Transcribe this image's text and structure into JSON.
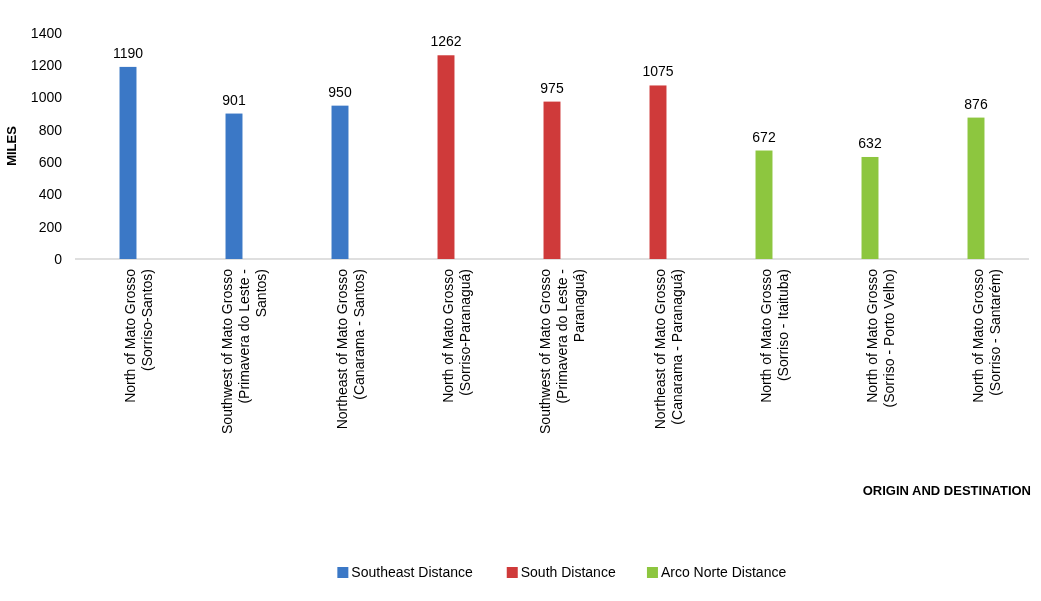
{
  "chart_data": {
    "type": "bar",
    "stacked": true,
    "categories": [
      "North of Mato Grosso (Sorriso-Santos)",
      "Southwest of Mato Grosso (Primavera do Leste - Santos)",
      "Northeast of Mato Grosso (Canarama - Santos)",
      "North of Mato Grosso (Sorriso-Paranaguá)",
      "Southwest of Mato Grosso (Primavera do Leste - Paranaguá)",
      "Northeast of Mato Grosso (Canarama - Paranaguá)",
      "North of Mato Grosso (Sorriso - Itaituba)",
      "North of Mato Grosso (Sorriso - Porto Velho)",
      "North of Mato Grosso (Sorriso - Santarém)"
    ],
    "series": [
      {
        "name": "Southeast Distance",
        "color": "#3b78c6",
        "values": [
          1190,
          901,
          950,
          null,
          null,
          null,
          null,
          null,
          null
        ]
      },
      {
        "name": "South Distance",
        "color": "#cf3a3a",
        "values": [
          null,
          null,
          null,
          1262,
          975,
          1075,
          null,
          null,
          null
        ]
      },
      {
        "name": "Arco Norte Distance",
        "color": "#8dc63f",
        "values": [
          null,
          null,
          null,
          null,
          null,
          null,
          672,
          632,
          876
        ]
      }
    ],
    "ylim": [
      0,
      1400
    ],
    "yticks": [
      0,
      200,
      400,
      600,
      800,
      1000,
      1200,
      1400
    ],
    "ylabel": "MILES",
    "xlabel": "ORIGIN AND DESTINATION",
    "data_labels": true,
    "grid": false,
    "legend": "bottom"
  }
}
